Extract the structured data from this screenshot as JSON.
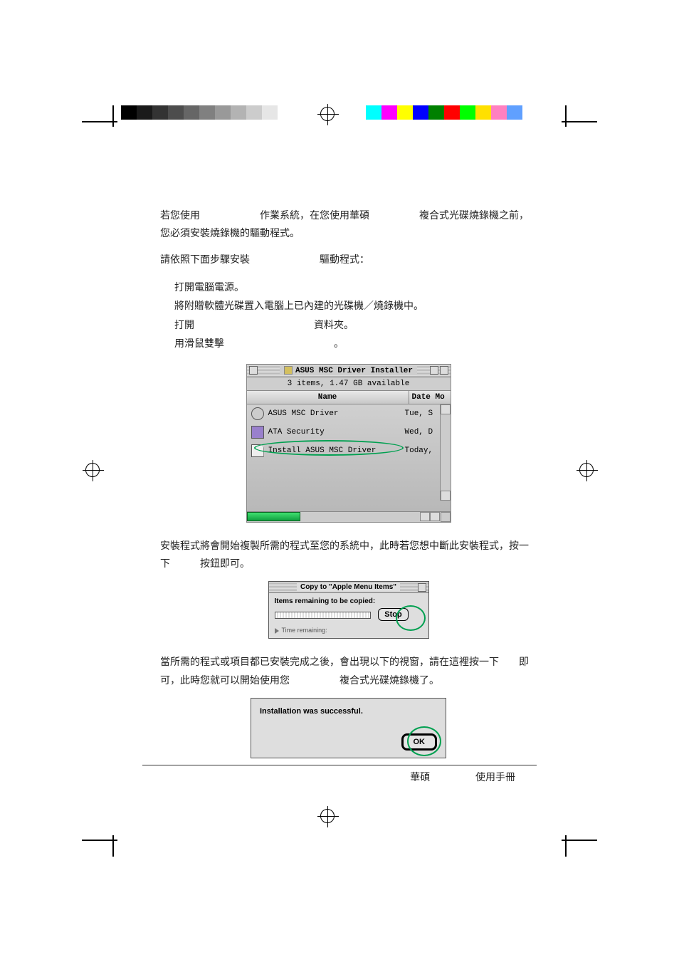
{
  "colorbar_gray": [
    "#000000",
    "#1a1a1a",
    "#333333",
    "#4d4d4d",
    "#666666",
    "#808080",
    "#999999",
    "#b3b3b3",
    "#cccccc",
    "#e6e6e6",
    "#ffffff"
  ],
  "colorbar_color": [
    "#00ffff",
    "#ff00ff",
    "#ffff00",
    "#0000ff",
    "#008000",
    "#ff0000",
    "#00ff00",
    "#ffe000",
    "#ff80c0",
    "#60a0ff"
  ],
  "body": {
    "para1": "若您使用　　　　　　作業系統，在您使用華碩　　　　　複合式光碟燒錄機之前，您必須安裝燒錄機的驅動程式。",
    "para2": "請依照下面步驟安裝　　　　　　　驅動程式：",
    "step1": "打開電腦電源。",
    "step2": "將附贈軟體光碟置入電腦上已內建的光碟機／燒錄機中。",
    "step3": "打開　　　　　　　　　　　　資料夾。",
    "step4": "用滑鼠雙擊　　　　　　　　　　　。",
    "para3": "安裝程式將會開始複製所需的程式至您的系統中，此時若您想中斷此安裝程式，按一下　　　按鈕即可。",
    "para4": "當所需的程式或項目都已安裝完成之後，會出現以下的視窗，請在這裡按一下　　即可，此時您就可以開始使用您　　　　　複合式光碟燒錄機了。"
  },
  "finder": {
    "title": "ASUS MSC Driver Installer",
    "info": "3 items, 1.47 GB available",
    "col_name": "Name",
    "col_date": "Date Mo",
    "rows": [
      {
        "name": "ASUS MSC Driver",
        "date": "Tue, S",
        "icon_type": "circle"
      },
      {
        "name": "ATA Security",
        "date": "Wed, D",
        "icon_type": "usb"
      },
      {
        "name": "Install ASUS MSC Driver",
        "date": "Today,",
        "icon_type": "paper",
        "highlighted": true
      }
    ],
    "highlight_color": "#00a050",
    "scrollbar_thumb_color": "#20c050"
  },
  "copy_dialog": {
    "title": "Copy to \"Apple Menu Items\"",
    "label": "Items remaining to be copied:",
    "stop_label": "Stop",
    "time_label": "Time remaining:"
  },
  "success_dialog": {
    "text": "Installation was successful.",
    "ok_label": "OK"
  },
  "footer": {
    "left": "華碩",
    "right": "使用手冊"
  }
}
